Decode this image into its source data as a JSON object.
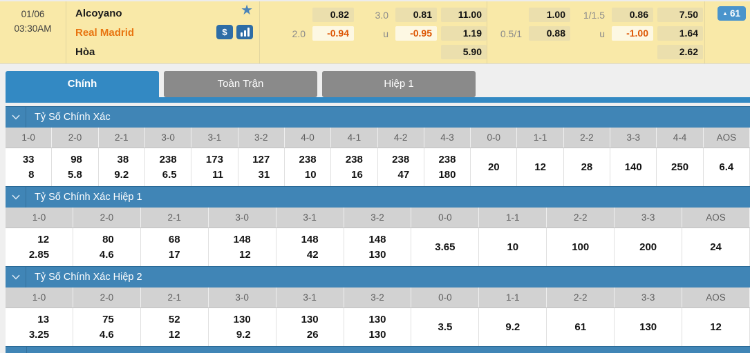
{
  "banner": {
    "date": "01/06",
    "time": "03:30AM",
    "home_team": "Alcoyano",
    "away_team": "Real Madrid",
    "draw_label": "Hòa",
    "badge": {
      "arrow": "▲",
      "count": "61"
    },
    "icons": {
      "favorite": "star",
      "bet": "dollar-sign",
      "stats": "bar-chart",
      "collapse": "chevron-down"
    },
    "odds_groups": [
      {
        "name": "handicap-ou-1x2-main",
        "rows": [
          [
            {
              "t": "none",
              "v": ""
            },
            {
              "t": "chip",
              "v": "0.82"
            },
            {
              "t": "label",
              "v": "3.0"
            },
            {
              "t": "chip",
              "v": "0.81"
            },
            {
              "t": "chip",
              "v": "11.00"
            }
          ],
          [
            {
              "t": "label",
              "v": "2.0"
            },
            {
              "t": "chip-neg",
              "v": "-0.94"
            },
            {
              "t": "label",
              "v": "u"
            },
            {
              "t": "chip-neg",
              "v": "-0.95"
            },
            {
              "t": "chip",
              "v": "1.19"
            }
          ],
          [
            {
              "t": "none",
              "v": ""
            },
            {
              "t": "none",
              "v": ""
            },
            {
              "t": "none",
              "v": ""
            },
            {
              "t": "none",
              "v": ""
            },
            {
              "t": "chip",
              "v": "5.90"
            }
          ]
        ]
      },
      {
        "name": "handicap-ou-1x2-secondary",
        "rows": [
          [
            {
              "t": "none",
              "v": ""
            },
            {
              "t": "chip",
              "v": "1.00"
            },
            {
              "t": "label",
              "v": "1/1.5"
            },
            {
              "t": "chip",
              "v": "0.86"
            },
            {
              "t": "chip",
              "v": "7.50"
            }
          ],
          [
            {
              "t": "label",
              "v": "0.5/1"
            },
            {
              "t": "chip",
              "v": "0.88"
            },
            {
              "t": "label",
              "v": "u"
            },
            {
              "t": "chip-neg",
              "v": "-1.00"
            },
            {
              "t": "chip",
              "v": "1.64"
            }
          ],
          [
            {
              "t": "none",
              "v": ""
            },
            {
              "t": "none",
              "v": ""
            },
            {
              "t": "none",
              "v": ""
            },
            {
              "t": "none",
              "v": ""
            },
            {
              "t": "chip",
              "v": "2.62"
            }
          ]
        ]
      }
    ]
  },
  "tabs": [
    {
      "label": "Chính",
      "active": true
    },
    {
      "label": "Toàn Trận",
      "active": false
    },
    {
      "label": "Hiệp 1",
      "active": false
    }
  ],
  "sections": [
    {
      "title": "Tỷ Số Chính Xác",
      "columns": [
        "1-0",
        "2-0",
        "2-1",
        "3-0",
        "3-1",
        "3-2",
        "4-0",
        "4-1",
        "4-2",
        "4-3",
        "0-0",
        "1-1",
        "2-2",
        "3-3",
        "4-4",
        "AOS"
      ],
      "values": [
        [
          "33",
          "8"
        ],
        [
          "98",
          "5.8"
        ],
        [
          "38",
          "9.2"
        ],
        [
          "238",
          "6.5"
        ],
        [
          "173",
          "11"
        ],
        [
          "127",
          "31"
        ],
        [
          "238",
          "10"
        ],
        [
          "238",
          "16"
        ],
        [
          "238",
          "47"
        ],
        [
          "238",
          "180"
        ],
        [
          "20"
        ],
        [
          "12"
        ],
        [
          "28"
        ],
        [
          "140"
        ],
        [
          "250"
        ],
        [
          "6.4"
        ]
      ]
    },
    {
      "title": "Tỷ Số Chính Xác Hiệp 1",
      "columns": [
        "1-0",
        "2-0",
        "2-1",
        "3-0",
        "3-1",
        "3-2",
        "0-0",
        "1-1",
        "2-2",
        "3-3",
        "AOS"
      ],
      "values": [
        [
          "12",
          "2.85"
        ],
        [
          "80",
          "4.6"
        ],
        [
          "68",
          "17"
        ],
        [
          "148",
          "12"
        ],
        [
          "148",
          "42"
        ],
        [
          "148",
          "130"
        ],
        [
          "3.65"
        ],
        [
          "10"
        ],
        [
          "100"
        ],
        [
          "200"
        ],
        [
          "24"
        ]
      ]
    },
    {
      "title": "Tỷ Số Chính Xác Hiệp 2",
      "columns": [
        "1-0",
        "2-0",
        "2-1",
        "3-0",
        "3-1",
        "3-2",
        "0-0",
        "1-1",
        "2-2",
        "3-3",
        "AOS"
      ],
      "values": [
        [
          "13",
          "3.25"
        ],
        [
          "75",
          "4.6"
        ],
        [
          "52",
          "12"
        ],
        [
          "130",
          "9.2"
        ],
        [
          "130",
          "26"
        ],
        [
          "130",
          "130"
        ],
        [
          "3.5"
        ],
        [
          "9.2"
        ],
        [
          "61"
        ],
        [
          "130"
        ],
        [
          "12"
        ]
      ]
    }
  ],
  "colors": {
    "banner_bg": "#f9e9a8",
    "chip_bg": "#ebdfad",
    "chip_negative_bg": "#fdf8e3",
    "negative_text": "#dd5604",
    "away_team_text": "#e87511",
    "active_tab_blue": "#3389c3",
    "inactive_tab_gray": "#8a8a8a",
    "section_header_blue": "#4085b6",
    "badge_blue": "#4a94cc"
  }
}
